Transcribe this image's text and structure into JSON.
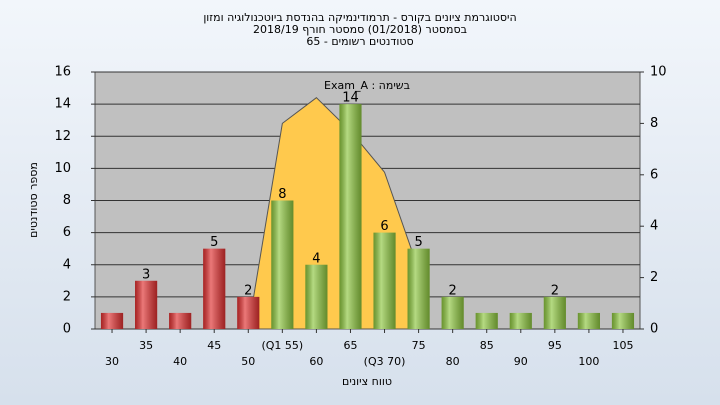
{
  "chart_data": {
    "type": "bar",
    "title": "היסטוגרמת ציונים בקורס - תרמודינמיקה בהנדסת ביוטכנולוגיה ומזון",
    "subtitle": [
      "בסמסטר  (01/2018)  סמסטר חורף 2018/19",
      "סטודנטים רשומים - 65"
    ],
    "annotation": "Exam_A : בשימה",
    "x_label": "טווח ציונים",
    "y_label": "מספר סטודנטים",
    "categories": [
      "30",
      "35",
      "40",
      "45",
      "50",
      "(Q1 55)",
      "60",
      "65",
      "(Q3 70)",
      "75",
      "80",
      "85",
      "90",
      "95",
      "100",
      "105"
    ],
    "series": [
      {
        "values": [
          1,
          3,
          1,
          5,
          2,
          8,
          4,
          14,
          6,
          5,
          2,
          1,
          1,
          2,
          1,
          1
        ],
        "value_labels": [
          null,
          "3",
          null,
          "5",
          "2",
          "8",
          "4",
          "14",
          "6",
          "5",
          "2",
          null,
          null,
          "2",
          null,
          null
        ],
        "colors": [
          "#e03030",
          "#e03030",
          "#e03030",
          "#e03030",
          "#e03030",
          "#8dc63f",
          "#8dc63f",
          "#8dc63f",
          "#8dc63f",
          "#8dc63f",
          "#8dc63f",
          "#8dc63f",
          "#8dc63f",
          "#8dc63f",
          "#8dc63f",
          "#8dc63f"
        ]
      },
      {
        "type": "area",
        "axis": "y2",
        "color": "#ffc94d",
        "values": [
          null,
          null,
          null,
          null,
          0,
          8,
          9,
          7.7,
          6.1,
          2.3,
          null,
          null,
          null,
          null,
          null,
          null
        ]
      }
    ],
    "ylim": [
      0,
      16
    ],
    "yticks": [
      0,
      2,
      4,
      6,
      8,
      10,
      12,
      14,
      16
    ],
    "y2lim": [
      0,
      10
    ],
    "y2ticks": [
      0,
      2,
      4,
      6,
      8,
      10
    ],
    "grid": true
  }
}
